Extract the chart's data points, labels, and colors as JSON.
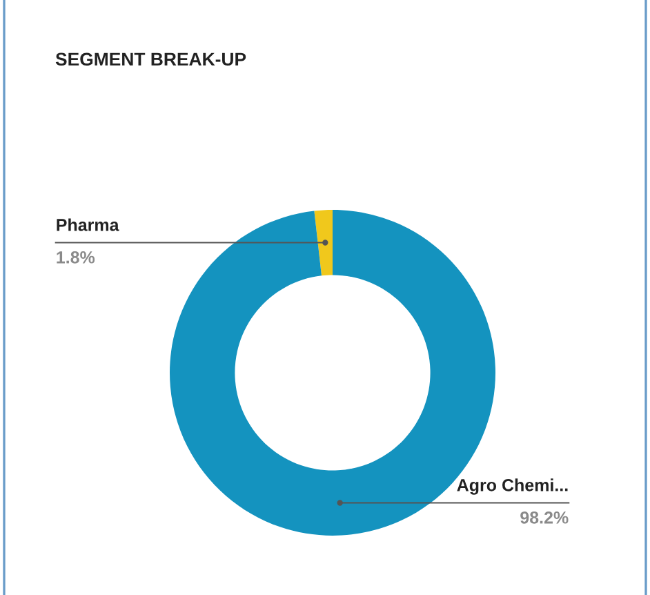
{
  "chart_data": {
    "type": "donut",
    "title": "SEGMENT BREAK-UP",
    "categories": [
      "Pharma",
      "Agro Chemi..."
    ],
    "values": [
      1.8,
      98.2
    ],
    "colors": [
      "#f0c81c",
      "#1493bf"
    ],
    "value_labels": [
      "1.8%",
      "98.2%"
    ]
  }
}
